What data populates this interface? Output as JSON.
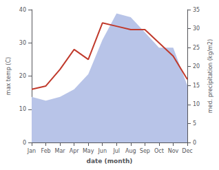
{
  "chart_data": {
    "type": "line",
    "xlabel": "date (month)",
    "ylabel": "max temp (C)",
    "y2label": "med. precipitation (kg/m2)",
    "categories": [
      "Jan",
      "Feb",
      "Mar",
      "Apr",
      "May",
      "Jun",
      "Jul",
      "Aug",
      "Sep",
      "Oct",
      "Nov",
      "Dec"
    ],
    "series": [
      {
        "type": "area",
        "axis": "y2",
        "color": "#b8c4e8",
        "values": [
          12,
          11,
          12,
          14,
          18,
          27,
          34,
          33,
          29,
          25,
          25,
          15
        ]
      },
      {
        "type": "line",
        "color": "#c0392b",
        "values": [
          16,
          17,
          22,
          28,
          25,
          36,
          35,
          34,
          34,
          30,
          26,
          19
        ]
      }
    ],
    "ylim": [
      0,
      40
    ],
    "yticks": [
      0,
      10,
      20,
      30,
      40
    ],
    "y2lim": [
      0,
      35
    ],
    "y2ticks": [
      0,
      5,
      10,
      15,
      20,
      25,
      30,
      35
    ],
    "grid": false
  }
}
